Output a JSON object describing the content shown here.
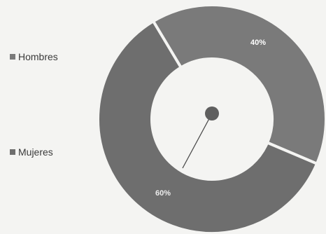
{
  "chart_data": {
    "type": "pie",
    "style": "donut",
    "legend_position": "left",
    "slices": [
      {
        "label": "Hombres",
        "value": 40,
        "display": "40%",
        "color": "#7a7a7a"
      },
      {
        "label": "Mujeres",
        "value": 60,
        "display": "60%",
        "color": "#6e6e6e"
      }
    ]
  }
}
